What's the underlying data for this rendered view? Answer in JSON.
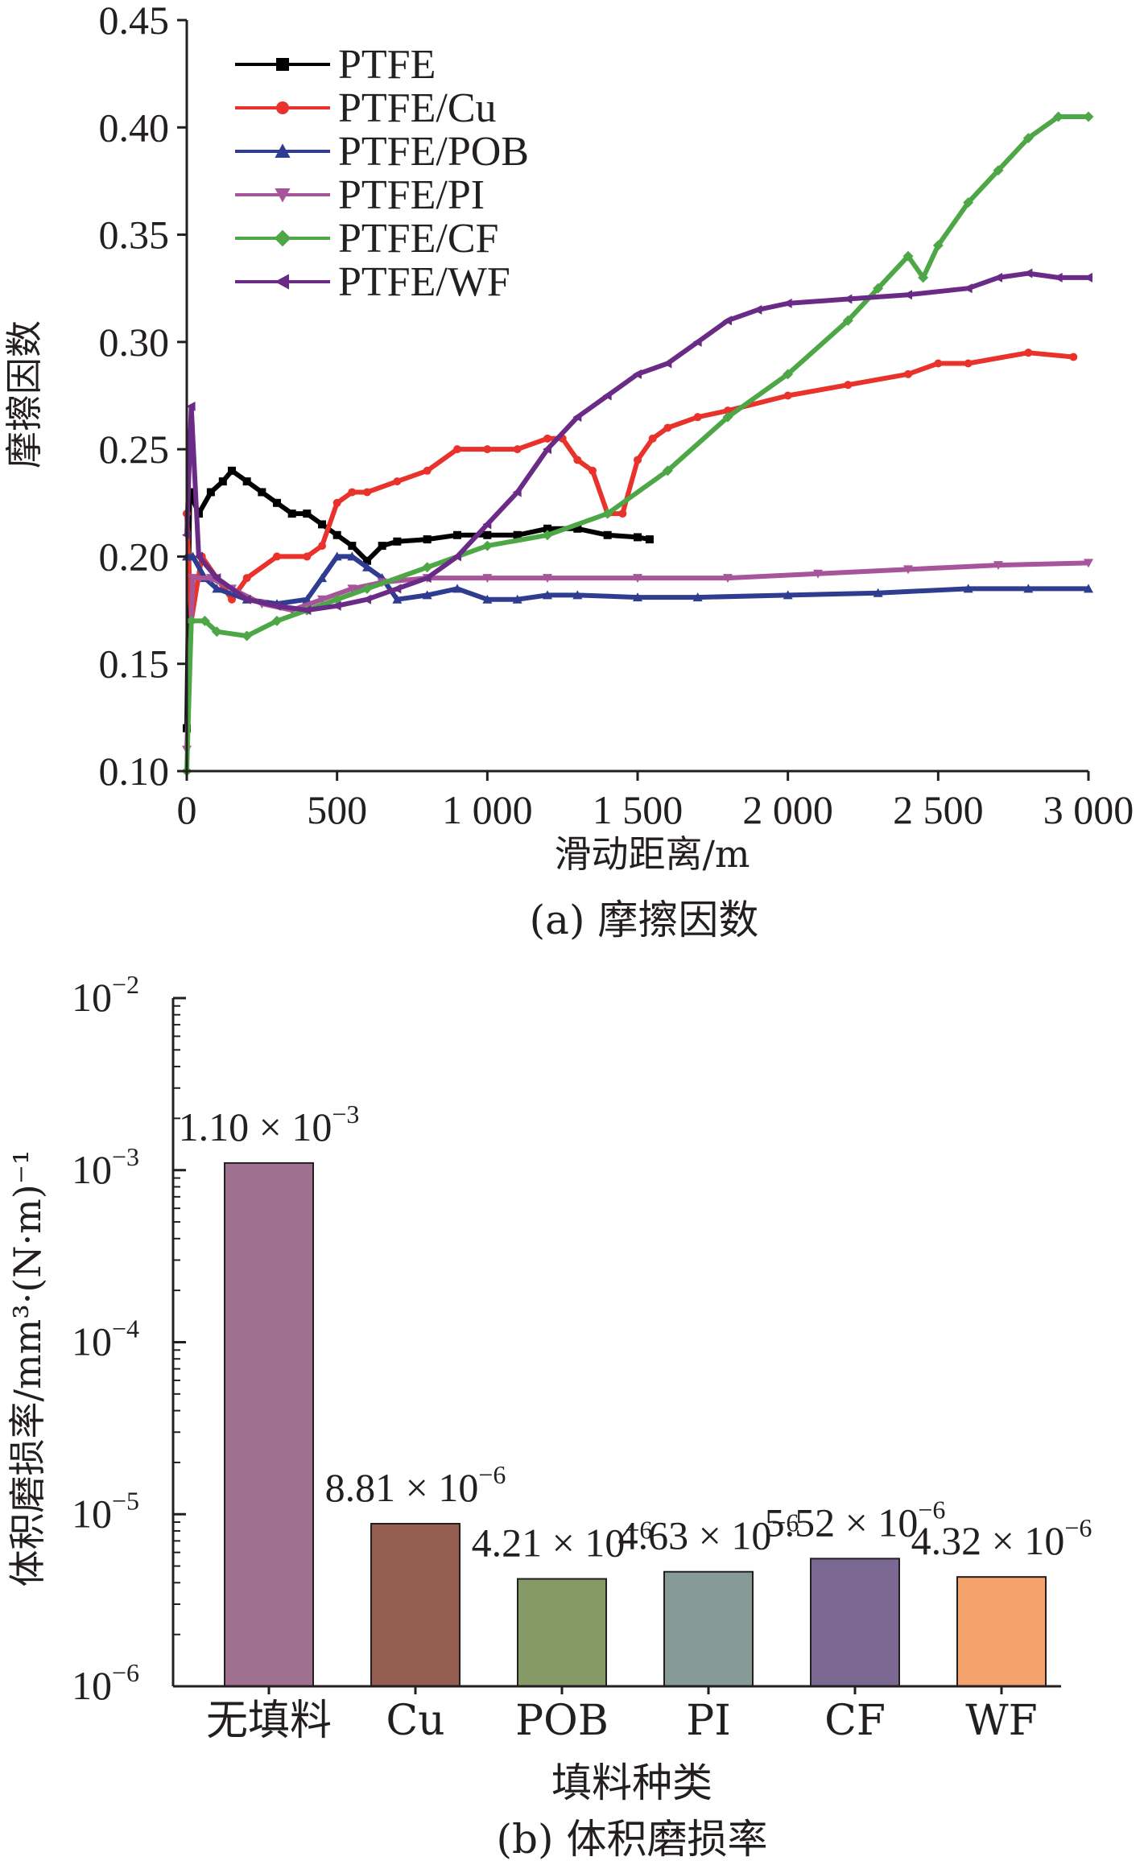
{
  "chart_data": [
    {
      "type": "line",
      "caption": "(a) 摩擦因数",
      "xlabel": "滑动距离/m",
      "ylabel": "摩擦因数",
      "xlim": [
        0,
        3000
      ],
      "ylim": [
        0.1,
        0.45
      ],
      "x_ticks": [
        0,
        500,
        1000,
        1500,
        2000,
        2500,
        3000
      ],
      "x_tick_labels": [
        "0",
        "500",
        "1 000",
        "1 500",
        "2 000",
        "2 500",
        "3 000"
      ],
      "y_ticks": [
        0.1,
        0.15,
        0.2,
        0.25,
        0.3,
        0.35,
        0.4,
        0.45
      ],
      "y_tick_labels": [
        "0.10",
        "0.15",
        "0.20",
        "0.25",
        "0.30",
        "0.35",
        "0.40",
        "0.45"
      ],
      "grid": false,
      "legend_position": "top-left",
      "series": [
        {
          "name": "PTFE",
          "color": "#000000",
          "marker": "square",
          "points": [
            [
              0,
              0.12
            ],
            [
              10,
              0.23
            ],
            [
              40,
              0.22
            ],
            [
              80,
              0.23
            ],
            [
              120,
              0.235
            ],
            [
              150,
              0.24
            ],
            [
              200,
              0.235
            ],
            [
              250,
              0.23
            ],
            [
              300,
              0.225
            ],
            [
              350,
              0.22
            ],
            [
              400,
              0.22
            ],
            [
              450,
              0.215
            ],
            [
              500,
              0.21
            ],
            [
              550,
              0.205
            ],
            [
              600,
              0.198
            ],
            [
              650,
              0.205
            ],
            [
              700,
              0.207
            ],
            [
              800,
              0.208
            ],
            [
              900,
              0.21
            ],
            [
              1000,
              0.21
            ],
            [
              1100,
              0.21
            ],
            [
              1200,
              0.213
            ],
            [
              1300,
              0.213
            ],
            [
              1400,
              0.21
            ],
            [
              1500,
              0.209
            ],
            [
              1540,
              0.208
            ]
          ]
        },
        {
          "name": "PTFE/Cu",
          "color": "#e8322b",
          "marker": "circle",
          "points": [
            [
              0,
              0.22
            ],
            [
              15,
              0.17
            ],
            [
              50,
              0.2
            ],
            [
              100,
              0.19
            ],
            [
              150,
              0.18
            ],
            [
              200,
              0.19
            ],
            [
              300,
              0.2
            ],
            [
              400,
              0.2
            ],
            [
              450,
              0.205
            ],
            [
              500,
              0.225
            ],
            [
              550,
              0.23
            ],
            [
              600,
              0.23
            ],
            [
              700,
              0.235
            ],
            [
              800,
              0.24
            ],
            [
              900,
              0.25
            ],
            [
              1000,
              0.25
            ],
            [
              1100,
              0.25
            ],
            [
              1200,
              0.255
            ],
            [
              1250,
              0.255
            ],
            [
              1300,
              0.245
            ],
            [
              1350,
              0.24
            ],
            [
              1400,
              0.22
            ],
            [
              1450,
              0.22
            ],
            [
              1500,
              0.245
            ],
            [
              1550,
              0.255
            ],
            [
              1600,
              0.26
            ],
            [
              1700,
              0.265
            ],
            [
              1800,
              0.268
            ],
            [
              2000,
              0.275
            ],
            [
              2200,
              0.28
            ],
            [
              2400,
              0.285
            ],
            [
              2500,
              0.29
            ],
            [
              2600,
              0.29
            ],
            [
              2800,
              0.295
            ],
            [
              2950,
              0.293
            ]
          ]
        },
        {
          "name": "PTFE/POB",
          "color": "#2e3d8f",
          "marker": "triangle-up",
          "points": [
            [
              0,
              0.2
            ],
            [
              20,
              0.2
            ],
            [
              60,
              0.19
            ],
            [
              100,
              0.185
            ],
            [
              200,
              0.18
            ],
            [
              300,
              0.178
            ],
            [
              400,
              0.18
            ],
            [
              450,
              0.19
            ],
            [
              500,
              0.2
            ],
            [
              550,
              0.2
            ],
            [
              600,
              0.195
            ],
            [
              650,
              0.19
            ],
            [
              700,
              0.18
            ],
            [
              800,
              0.182
            ],
            [
              900,
              0.185
            ],
            [
              1000,
              0.18
            ],
            [
              1100,
              0.18
            ],
            [
              1200,
              0.182
            ],
            [
              1300,
              0.182
            ],
            [
              1500,
              0.181
            ],
            [
              1700,
              0.181
            ],
            [
              2000,
              0.182
            ],
            [
              2300,
              0.183
            ],
            [
              2600,
              0.185
            ],
            [
              2800,
              0.185
            ],
            [
              3000,
              0.185
            ]
          ]
        },
        {
          "name": "PTFE/PI",
          "color": "#a7559b",
          "marker": "triangle-down",
          "points": [
            [
              0,
              0.11
            ],
            [
              20,
              0.19
            ],
            [
              80,
              0.19
            ],
            [
              150,
              0.185
            ],
            [
              250,
              0.178
            ],
            [
              350,
              0.175
            ],
            [
              450,
              0.18
            ],
            [
              550,
              0.185
            ],
            [
              650,
              0.188
            ],
            [
              800,
              0.19
            ],
            [
              1000,
              0.19
            ],
            [
              1200,
              0.19
            ],
            [
              1500,
              0.19
            ],
            [
              1800,
              0.19
            ],
            [
              2100,
              0.192
            ],
            [
              2400,
              0.194
            ],
            [
              2700,
              0.196
            ],
            [
              3000,
              0.197
            ]
          ]
        },
        {
          "name": "PTFE/CF",
          "color": "#4ea747",
          "marker": "diamond",
          "points": [
            [
              0,
              0.1
            ],
            [
              15,
              0.17
            ],
            [
              60,
              0.17
            ],
            [
              100,
              0.165
            ],
            [
              200,
              0.163
            ],
            [
              300,
              0.17
            ],
            [
              400,
              0.175
            ],
            [
              500,
              0.18
            ],
            [
              600,
              0.185
            ],
            [
              800,
              0.195
            ],
            [
              1000,
              0.205
            ],
            [
              1200,
              0.21
            ],
            [
              1400,
              0.22
            ],
            [
              1600,
              0.24
            ],
            [
              1800,
              0.265
            ],
            [
              2000,
              0.285
            ],
            [
              2200,
              0.31
            ],
            [
              2300,
              0.325
            ],
            [
              2400,
              0.34
            ],
            [
              2450,
              0.33
            ],
            [
              2500,
              0.345
            ],
            [
              2600,
              0.365
            ],
            [
              2700,
              0.38
            ],
            [
              2800,
              0.395
            ],
            [
              2900,
              0.405
            ],
            [
              3000,
              0.405
            ]
          ]
        },
        {
          "name": "PTFE/WF",
          "color": "#6a2b86",
          "marker": "triangle-left",
          "points": [
            [
              0,
              0.21
            ],
            [
              15,
              0.27
            ],
            [
              40,
              0.2
            ],
            [
              100,
              0.19
            ],
            [
              200,
              0.18
            ],
            [
              300,
              0.177
            ],
            [
              400,
              0.175
            ],
            [
              500,
              0.177
            ],
            [
              600,
              0.18
            ],
            [
              700,
              0.185
            ],
            [
              800,
              0.19
            ],
            [
              900,
              0.2
            ],
            [
              1000,
              0.215
            ],
            [
              1100,
              0.23
            ],
            [
              1200,
              0.25
            ],
            [
              1300,
              0.265
            ],
            [
              1400,
              0.275
            ],
            [
              1500,
              0.285
            ],
            [
              1600,
              0.29
            ],
            [
              1700,
              0.3
            ],
            [
              1800,
              0.31
            ],
            [
              1900,
              0.315
            ],
            [
              2000,
              0.318
            ],
            [
              2200,
              0.32
            ],
            [
              2400,
              0.322
            ],
            [
              2600,
              0.325
            ],
            [
              2700,
              0.33
            ],
            [
              2800,
              0.332
            ],
            [
              2900,
              0.33
            ],
            [
              3000,
              0.33
            ]
          ]
        }
      ]
    },
    {
      "type": "bar",
      "caption": "(b) 体积磨损率",
      "xlabel": "填料种类",
      "ylabel": "体积磨损率/mm³·(N·m)⁻¹",
      "yscale": "log",
      "ylim_exponents": [
        -6,
        -2
      ],
      "y_tick_labels": [
        {
          "base": "10",
          "exp": "−6"
        },
        {
          "base": "10",
          "exp": "−5"
        },
        {
          "base": "10",
          "exp": "−4"
        },
        {
          "base": "10",
          "exp": "−3"
        },
        {
          "base": "10",
          "exp": "−2"
        }
      ],
      "categories": [
        "无填料",
        "Cu",
        "POB",
        "PI",
        "CF",
        "WF"
      ],
      "values": [
        0.0011,
        8.81e-06,
        4.21e-06,
        4.63e-06,
        5.52e-06,
        4.32e-06
      ],
      "labels": [
        {
          "m": "1.10",
          "exp": "−3"
        },
        {
          "m": "8.81",
          "exp": "−6"
        },
        {
          "m": "4.21",
          "exp": "−6"
        },
        {
          "m": "4.63",
          "exp": "−6"
        },
        {
          "m": "5.52",
          "exp": "−6"
        },
        {
          "m": "4.32",
          "exp": "−6"
        }
      ],
      "colors": [
        "#a07090",
        "#935e4f",
        "#869a68",
        "#869a96",
        "#7a6893",
        "#f4a36c"
      ]
    }
  ]
}
